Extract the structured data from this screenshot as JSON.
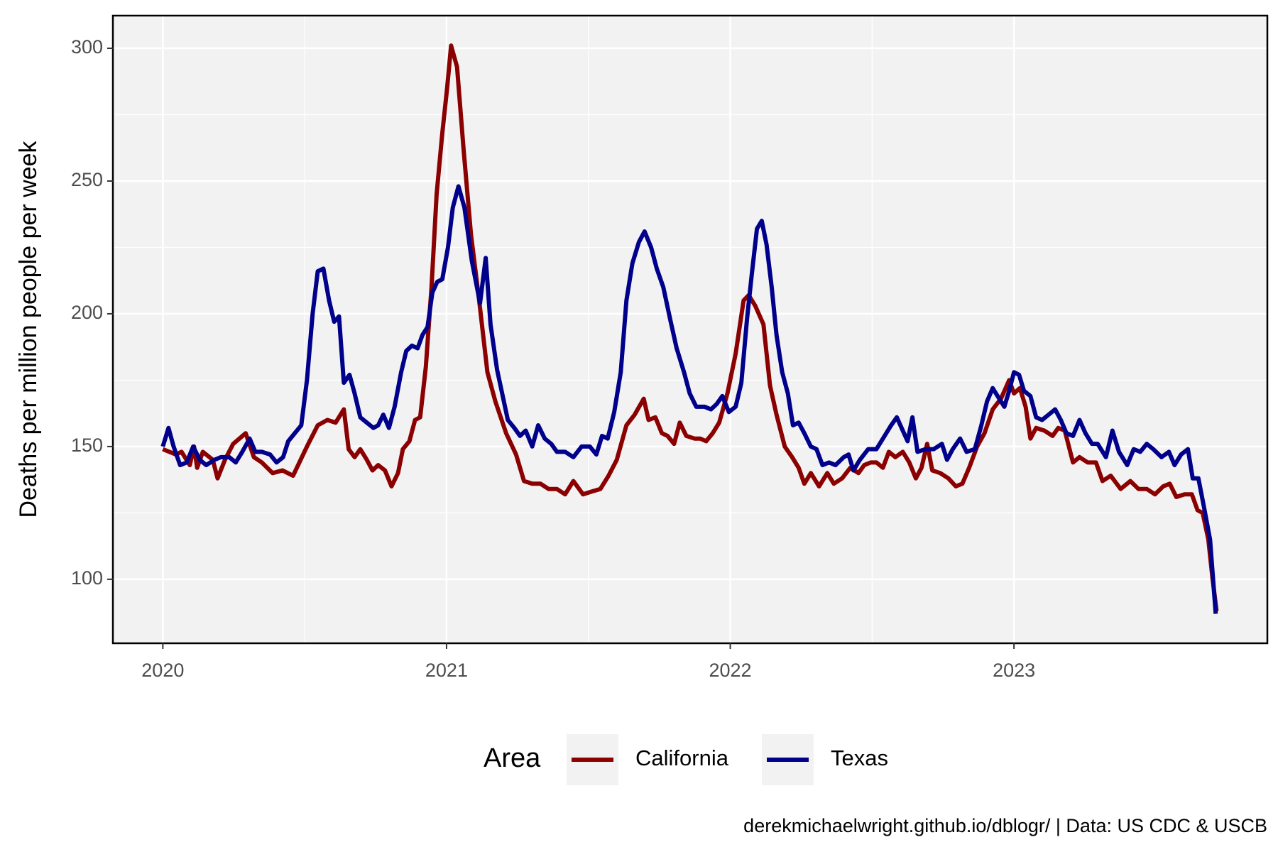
{
  "chart_data": {
    "type": "line",
    "y_label": "Deaths per million people per week",
    "legend_title": "Area",
    "legend_position": "bottom",
    "caption": "derekmichaelwright.github.io/dblogr/ | Data: US CDC & USCB",
    "xlim": [
      2019.824,
      2023.893
    ],
    "ylim": [
      75.9,
      312.3
    ],
    "xticks": [
      2020,
      2021,
      2022,
      2023
    ],
    "yticks": [
      100,
      150,
      200,
      250,
      300
    ],
    "grid": true,
    "minor_grid": true,
    "series": [
      {
        "name": "California",
        "color": "#8b0000",
        "x": [
          2020.0,
          2020.046,
          2020.066,
          2020.095,
          2020.11,
          2020.121,
          2020.141,
          2020.176,
          2020.193,
          2020.219,
          2020.248,
          2020.292,
          2020.321,
          2020.349,
          2020.387,
          2020.422,
          2020.459,
          2020.508,
          2020.546,
          2020.58,
          2020.609,
          2020.638,
          2020.655,
          2020.676,
          2020.696,
          2020.719,
          2020.739,
          2020.759,
          2020.783,
          2020.806,
          2020.829,
          2020.846,
          2020.869,
          2020.889,
          2020.907,
          2020.927,
          2020.947,
          2020.965,
          2020.985,
          2021.002,
          2021.016,
          2021.037,
          2021.06,
          2021.086,
          2021.115,
          2021.144,
          2021.172,
          2021.21,
          2021.245,
          2021.273,
          2021.302,
          2021.331,
          2021.36,
          2021.389,
          2021.418,
          2021.447,
          2021.481,
          2021.51,
          2021.542,
          2021.571,
          2021.6,
          2021.634,
          2021.663,
          2021.695,
          2021.712,
          2021.736,
          2021.759,
          2021.779,
          2021.802,
          2021.822,
          2021.845,
          2021.874,
          2021.894,
          2021.915,
          2021.938,
          2021.961,
          2021.99,
          2022.019,
          2022.047,
          2022.065,
          2022.088,
          2022.117,
          2022.14,
          2022.163,
          2022.192,
          2022.218,
          2022.241,
          2022.261,
          2022.284,
          2022.313,
          2022.342,
          2022.365,
          2022.394,
          2022.423,
          2022.452,
          2022.472,
          2022.495,
          2022.515,
          2022.538,
          2022.559,
          2022.582,
          2022.608,
          2022.631,
          2022.654,
          2022.674,
          2022.694,
          2022.712,
          2022.74,
          2022.769,
          2022.795,
          2022.818,
          2022.842,
          2022.87,
          2022.896,
          2022.925,
          2022.954,
          2022.983,
          2023.0,
          2023.021,
          2023.041,
          2023.058,
          2023.078,
          2023.107,
          2023.136,
          2023.156,
          2023.179,
          2023.208,
          2023.231,
          2023.26,
          2023.289,
          2023.312,
          2023.341,
          2023.376,
          2023.41,
          2023.439,
          2023.468,
          2023.497,
          2023.526,
          2023.549,
          2023.572,
          2023.601,
          2023.627,
          2023.647,
          2023.665,
          2023.685,
          2023.699,
          2023.714
        ],
        "values": [
          149,
          147,
          148,
          143,
          150,
          142,
          148,
          145,
          138,
          145,
          151,
          155,
          146,
          144,
          140,
          141,
          139,
          150,
          158,
          160,
          159,
          164,
          149,
          146,
          149,
          145,
          141,
          143,
          141,
          135,
          140,
          149,
          152,
          160,
          161,
          180,
          210,
          245,
          268,
          285,
          301,
          293,
          262,
          230,
          205,
          178,
          167,
          155,
          147,
          137,
          136,
          136,
          134,
          134,
          132,
          137,
          132,
          133,
          134,
          139,
          145,
          158,
          162,
          168,
          160,
          161,
          155,
          154,
          151,
          159,
          154,
          153,
          153,
          152,
          155,
          159,
          170,
          185,
          205,
          207,
          203,
          196,
          173,
          162,
          150,
          146,
          142,
          136,
          140,
          135,
          140,
          136,
          138,
          142,
          140,
          143,
          144,
          144,
          142,
          148,
          146,
          148,
          144,
          138,
          142,
          151,
          141,
          140,
          138,
          135,
          136,
          142,
          150,
          155,
          164,
          168,
          175,
          170,
          172,
          165,
          153,
          157,
          156,
          154,
          157,
          156,
          144,
          146,
          144,
          144,
          137,
          139,
          134,
          137,
          134,
          134,
          132,
          135,
          136,
          131,
          132,
          132,
          126,
          125,
          115,
          101,
          88
        ]
      },
      {
        "name": "Texas",
        "color": "#00008b",
        "x": [
          2020.0,
          2020.02,
          2020.038,
          2020.061,
          2020.084,
          2020.107,
          2020.13,
          2020.153,
          2020.182,
          2020.205,
          2020.234,
          2020.257,
          2020.28,
          2020.306,
          2020.326,
          2020.349,
          2020.378,
          2020.401,
          2020.424,
          2020.442,
          2020.465,
          2020.488,
          2020.508,
          2020.528,
          2020.546,
          2020.566,
          2020.586,
          2020.604,
          2020.621,
          2020.638,
          2020.658,
          2020.676,
          2020.696,
          2020.719,
          2020.742,
          2020.759,
          2020.777,
          2020.797,
          2020.817,
          2020.84,
          2020.858,
          2020.878,
          2020.898,
          2020.915,
          2020.933,
          2020.95,
          2020.967,
          2020.985,
          2021.005,
          2021.022,
          2021.042,
          2021.063,
          2021.089,
          2021.118,
          2021.138,
          2021.155,
          2021.178,
          2021.216,
          2021.239,
          2021.259,
          2021.279,
          2021.302,
          2021.323,
          2021.346,
          2021.369,
          2021.389,
          2021.418,
          2021.447,
          2021.476,
          2021.505,
          2021.528,
          2021.548,
          2021.568,
          2021.591,
          2021.614,
          2021.634,
          2021.655,
          2021.678,
          2021.698,
          2021.721,
          2021.741,
          2021.764,
          2021.788,
          2021.811,
          2021.837,
          2021.857,
          2021.88,
          2021.909,
          2021.932,
          2021.952,
          2021.972,
          2021.995,
          2022.019,
          2022.039,
          2022.059,
          2022.076,
          2022.094,
          2022.111,
          2022.128,
          2022.146,
          2022.163,
          2022.183,
          2022.203,
          2022.221,
          2022.241,
          2022.261,
          2022.284,
          2022.304,
          2022.325,
          2022.348,
          2022.371,
          2022.4,
          2022.417,
          2022.434,
          2022.457,
          2022.486,
          2022.515,
          2022.544,
          2022.567,
          2022.587,
          2022.608,
          2022.625,
          2022.642,
          2022.66,
          2022.688,
          2022.717,
          2022.746,
          2022.764,
          2022.784,
          2022.81,
          2022.833,
          2022.862,
          2022.885,
          2022.905,
          2022.925,
          2022.948,
          2022.966,
          2022.983,
          2023.0,
          2023.018,
          2023.035,
          2023.058,
          2023.078,
          2023.099,
          2023.122,
          2023.145,
          2023.165,
          2023.185,
          2023.208,
          2023.231,
          2023.252,
          2023.275,
          2023.295,
          2023.324,
          2023.347,
          2023.37,
          2023.399,
          2023.422,
          2023.445,
          2023.468,
          2023.491,
          2023.52,
          2023.546,
          2023.566,
          2023.589,
          2023.613,
          2023.63,
          2023.65,
          2023.67,
          2023.691,
          2023.711
        ],
        "values": [
          150,
          157,
          150,
          143,
          144,
          150,
          145,
          143,
          145,
          146,
          146,
          144,
          148,
          153,
          148,
          148,
          147,
          144,
          146,
          152,
          155,
          158,
          175,
          200,
          216,
          217,
          205,
          197,
          199,
          174,
          177,
          170,
          161,
          159,
          157,
          158,
          162,
          157,
          165,
          178,
          186,
          188,
          187,
          192,
          195,
          208,
          212,
          213,
          225,
          240,
          248,
          240,
          220,
          204,
          221,
          196,
          179,
          160,
          157,
          154,
          156,
          150,
          158,
          153,
          151,
          148,
          148,
          146,
          150,
          150,
          147,
          154,
          153,
          163,
          178,
          205,
          219,
          227,
          231,
          225,
          217,
          210,
          198,
          187,
          178,
          170,
          165,
          165,
          164,
          166,
          169,
          163,
          165,
          174,
          198,
          215,
          232,
          235,
          226,
          210,
          192,
          178,
          170,
          158,
          159,
          155,
          150,
          149,
          143,
          144,
          143,
          146,
          147,
          141,
          145,
          149,
          149,
          154,
          158,
          161,
          156,
          152,
          161,
          148,
          149,
          149,
          151,
          145,
          149,
          153,
          148,
          149,
          158,
          167,
          172,
          168,
          165,
          171,
          178,
          177,
          171,
          169,
          161,
          160,
          162,
          164,
          160,
          155,
          154,
          160,
          155,
          151,
          151,
          146,
          156,
          148,
          143,
          149,
          148,
          151,
          149,
          146,
          148,
          143,
          147,
          149,
          138,
          138,
          127,
          115,
          87
        ]
      }
    ]
  }
}
